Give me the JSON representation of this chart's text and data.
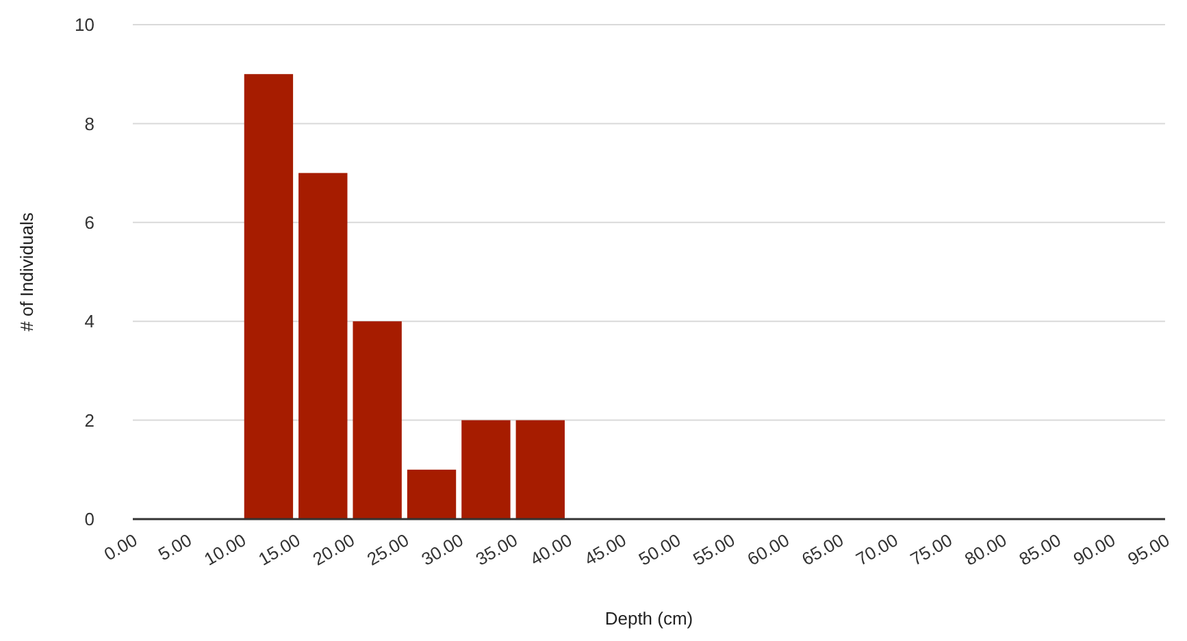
{
  "chart_data": {
    "type": "histogram",
    "xlabel": "Depth (cm)",
    "ylabel": "# of Individuals",
    "bins": [
      0,
      5,
      10,
      15,
      20,
      25,
      30,
      35,
      40,
      45,
      50,
      55,
      60,
      65,
      70,
      75,
      80,
      85,
      90,
      95
    ],
    "values": [
      0,
      0,
      9,
      7,
      4,
      1,
      2,
      2,
      0,
      0,
      0,
      0,
      0,
      0,
      0,
      0,
      0,
      0,
      0
    ],
    "color": "#a61c00",
    "xlim": [
      0,
      95
    ],
    "xticks": [
      {
        "value": 0,
        "label": "0.00"
      },
      {
        "value": 5,
        "label": "5.00"
      },
      {
        "value": 10,
        "label": "10.00"
      },
      {
        "value": 15,
        "label": "15.00"
      },
      {
        "value": 20,
        "label": "20.00"
      },
      {
        "value": 25,
        "label": "25.00"
      },
      {
        "value": 30,
        "label": "30.00"
      },
      {
        "value": 35,
        "label": "35.00"
      },
      {
        "value": 40,
        "label": "40.00"
      },
      {
        "value": 45,
        "label": "45.00"
      },
      {
        "value": 50,
        "label": "50.00"
      },
      {
        "value": 55,
        "label": "55.00"
      },
      {
        "value": 60,
        "label": "60.00"
      },
      {
        "value": 65,
        "label": "65.00"
      },
      {
        "value": 70,
        "label": "70.00"
      },
      {
        "value": 75,
        "label": "75.00"
      },
      {
        "value": 80,
        "label": "80.00"
      },
      {
        "value": 85,
        "label": "85.00"
      },
      {
        "value": 90,
        "label": "90.00"
      },
      {
        "value": 95,
        "label": "95.00"
      }
    ],
    "ylim": [
      0,
      10
    ],
    "yticks": [
      0,
      2,
      4,
      6,
      8,
      10
    ],
    "grid": "y"
  }
}
